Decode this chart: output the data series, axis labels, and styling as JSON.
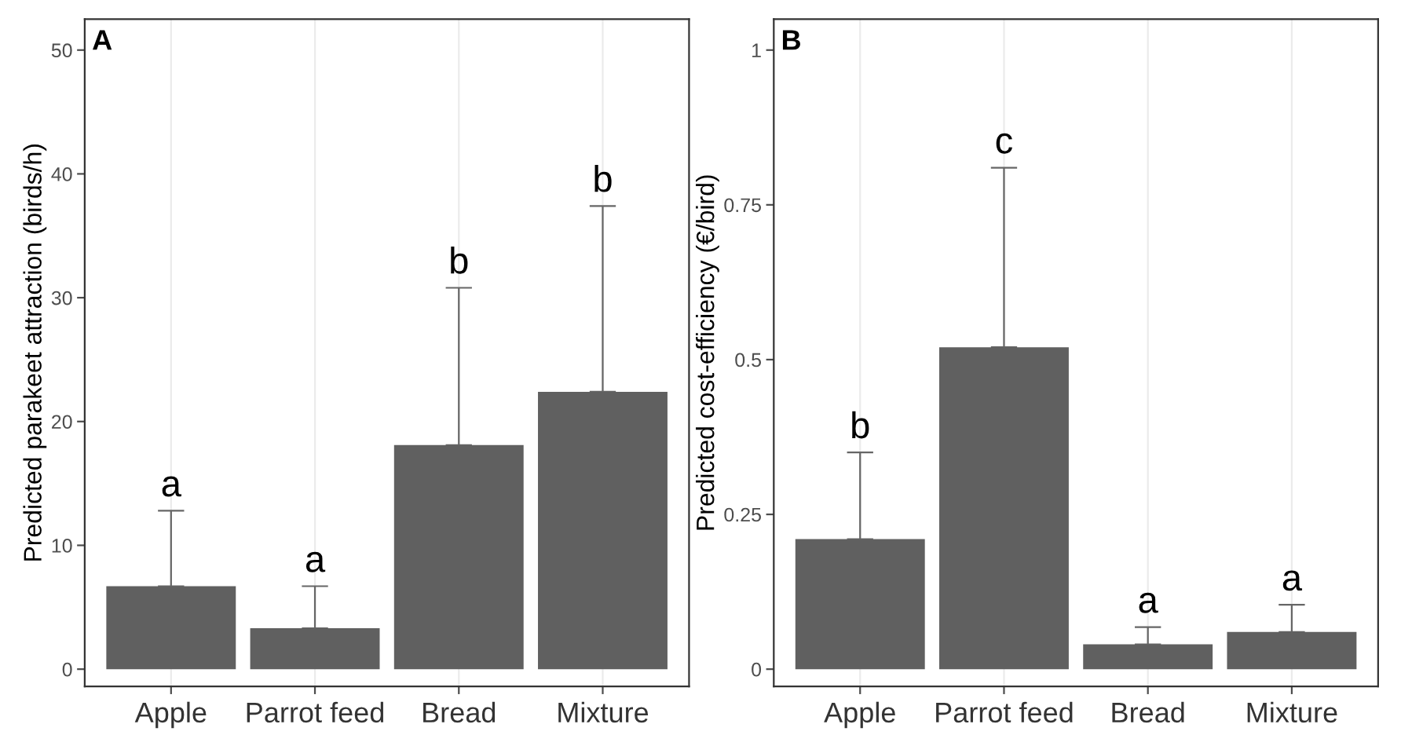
{
  "chart_data": [
    {
      "type": "bar",
      "title": "A",
      "ylabel": "Predicted parakeet attraction (birds/h)",
      "categories": [
        "Apple",
        "Parrot feed",
        "Bread",
        "Mixture"
      ],
      "values": [
        6.7,
        3.3,
        18.1,
        22.4
      ],
      "errors": [
        [
          6.7,
          12.8
        ],
        [
          3.3,
          6.7
        ],
        [
          18.1,
          30.8
        ],
        [
          22.4,
          37.4
        ]
      ],
      "color": "#606060",
      "ylim": [
        -1.4,
        52.5
      ],
      "yticks": [
        0,
        10,
        20,
        30,
        40,
        50
      ],
      "grid": "x",
      "annotations": [
        {
          "text": "a",
          "x": "Apple",
          "y": 12.8
        },
        {
          "text": "a",
          "x": "Parrot feed",
          "y": 6.7
        },
        {
          "text": "b",
          "x": "Bread",
          "y": 30.8
        },
        {
          "text": "b",
          "x": "Mixture",
          "y": 37.4
        }
      ]
    },
    {
      "type": "bar",
      "title": "B",
      "ylabel": "Predicted cost-efficiency (€/bird)",
      "categories": [
        "Apple",
        "Parrot feed",
        "Bread",
        "Mixture"
      ],
      "values": [
        0.21,
        0.52,
        0.04,
        0.06
      ],
      "errors": [
        [
          0.21,
          0.35
        ],
        [
          0.52,
          0.81
        ],
        [
          0.04,
          0.068
        ],
        [
          0.06,
          0.104
        ]
      ],
      "color": "#606060",
      "ylim": [
        -0.028,
        1.05
      ],
      "yticks": [
        0,
        0.25,
        0.5,
        0.75,
        1
      ],
      "grid": "x",
      "annotations": [
        {
          "text": "b",
          "x": "Apple",
          "y": 0.35
        },
        {
          "text": "c",
          "x": "Parrot feed",
          "y": 0.81
        },
        {
          "text": "a",
          "x": "Bread",
          "y": 0.068
        },
        {
          "text": "a",
          "x": "Mixture",
          "y": 0.104
        }
      ]
    }
  ]
}
